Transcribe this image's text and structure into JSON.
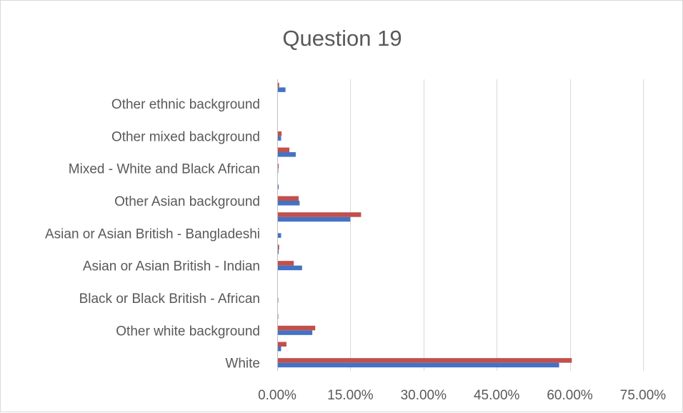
{
  "chart_data": {
    "type": "bar",
    "orientation": "horizontal",
    "title": "Question 19",
    "xlim": [
      0,
      75
    ],
    "x_ticks": [
      "0.00%",
      "15.00%",
      "30.00%",
      "45.00%",
      "60.00%",
      "75.00%"
    ],
    "x_tick_values": [
      0,
      15,
      30,
      45,
      60,
      75
    ],
    "grid": true,
    "legend": "none",
    "categories": [
      "White",
      "",
      "Other white background",
      "",
      "Black or Black British - African",
      "",
      "Asian or Asian British - Indian",
      "",
      "Asian or Asian British - Bangladeshi",
      "",
      "Other Asian background",
      "",
      "Mixed - White and Black African",
      "",
      "Other mixed background",
      "",
      "Other ethnic background",
      ""
    ],
    "series": [
      {
        "color": "#4472c4",
        "values": [
          57.8,
          0.8,
          7.2,
          0.2,
          0.2,
          0,
          5.1,
          0.3,
          0.8,
          15.0,
          4.6,
          0.3,
          0.2,
          3.8,
          0.8,
          0,
          0,
          1.7
        ]
      },
      {
        "color": "#c0504d",
        "values": [
          60.4,
          1.9,
          7.8,
          0,
          0,
          0,
          3.4,
          0.4,
          0,
          17.2,
          4.4,
          0,
          0.3,
          2.5,
          0.9,
          0,
          0,
          0.4
        ]
      }
    ]
  }
}
